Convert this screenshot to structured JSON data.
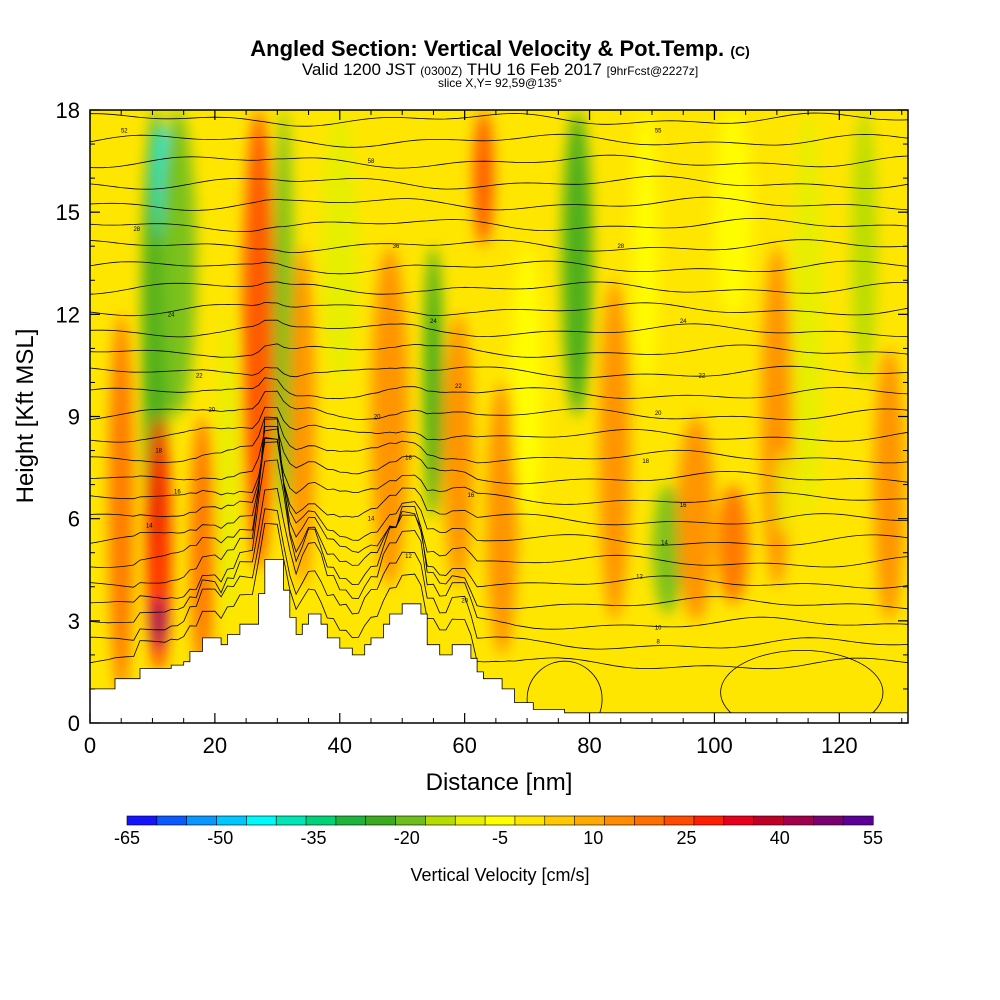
{
  "header": {
    "title_main": "Angled Section: Vertical Velocity & Pot.Temp.",
    "title_unit": "(C)",
    "valid_prefix": "Valid 1200 JST",
    "valid_utc": "(0300Z)",
    "valid_date": "THU 16 Feb 2017",
    "forecast": "[9hrFcst@2227z]",
    "slice": "slice X,Y= 92,59@135°"
  },
  "chart_data": {
    "type": "heatmap",
    "xlabel": "Distance [nm]",
    "ylabel": "Height [Kft MSL]",
    "xlim": [
      0,
      131
    ],
    "ylim": [
      0,
      18
    ],
    "x_ticks": [
      "0",
      "20",
      "40",
      "60",
      "80",
      "100",
      "120"
    ],
    "y_ticks": [
      "0",
      "3",
      "6",
      "9",
      "12",
      "15",
      "18"
    ],
    "x_tick_values": [
      0,
      20,
      40,
      60,
      80,
      100,
      120
    ],
    "y_tick_values": [
      0,
      3,
      6,
      9,
      12,
      15,
      18
    ],
    "colorbar": {
      "title": "Vertical Velocity [cm/s]",
      "labels": [
        "-65",
        "-50",
        "-35",
        "-20",
        "-5",
        "10",
        "25",
        "40",
        "55"
      ],
      "label_values": [
        -65,
        -50,
        -35,
        -20,
        -5,
        10,
        25,
        40,
        55
      ],
      "colors": [
        "#1414ff",
        "#0a5aff",
        "#0a96ff",
        "#00c8ff",
        "#00fafa",
        "#00e6b4",
        "#00d278",
        "#1eb43c",
        "#3caa1e",
        "#6ebe1e",
        "#b4dc00",
        "#e6f000",
        "#ffff00",
        "#ffe600",
        "#ffc800",
        "#ffaa00",
        "#ff8c00",
        "#ff6e00",
        "#ff4b00",
        "#ff1e00",
        "#e6001e",
        "#be0028",
        "#a0004b",
        "#7a0070",
        "#5a0096"
      ]
    },
    "terrain_profile": [
      [
        0,
        1.0
      ],
      [
        4,
        1.0
      ],
      [
        4,
        1.3
      ],
      [
        8,
        1.3
      ],
      [
        8,
        1.6
      ],
      [
        13,
        1.6
      ],
      [
        13,
        1.7
      ],
      [
        15,
        1.7
      ],
      [
        15,
        1.8
      ],
      [
        16,
        1.8
      ],
      [
        16,
        2.1
      ],
      [
        18,
        2.1
      ],
      [
        18,
        2.5
      ],
      [
        21,
        2.5
      ],
      [
        21,
        2.3
      ],
      [
        22,
        2.3
      ],
      [
        22,
        2.6
      ],
      [
        24,
        2.6
      ],
      [
        24,
        2.9
      ],
      [
        27,
        2.9
      ],
      [
        27,
        3.8
      ],
      [
        28,
        3.8
      ],
      [
        28,
        4.8
      ],
      [
        31,
        4.8
      ],
      [
        31,
        3.9
      ],
      [
        32,
        3.9
      ],
      [
        32,
        3.1
      ],
      [
        33,
        3.1
      ],
      [
        33,
        2.6
      ],
      [
        34,
        2.6
      ],
      [
        34,
        2.9
      ],
      [
        35,
        2.9
      ],
      [
        35,
        3.2
      ],
      [
        37,
        3.2
      ],
      [
        37,
        2.9
      ],
      [
        38,
        2.9
      ],
      [
        38,
        2.5
      ],
      [
        40,
        2.5
      ],
      [
        40,
        2.2
      ],
      [
        42,
        2.2
      ],
      [
        42,
        2.0
      ],
      [
        44,
        2.0
      ],
      [
        44,
        2.3
      ],
      [
        45,
        2.3
      ],
      [
        45,
        2.5
      ],
      [
        47,
        2.5
      ],
      [
        47,
        2.9
      ],
      [
        48,
        2.9
      ],
      [
        48,
        3.2
      ],
      [
        50,
        3.2
      ],
      [
        50,
        3.5
      ],
      [
        53,
        3.5
      ],
      [
        53,
        3.2
      ],
      [
        54,
        3.2
      ],
      [
        54,
        2.3
      ],
      [
        56,
        2.3
      ],
      [
        56,
        2.0
      ],
      [
        58,
        2.0
      ],
      [
        58,
        2.3
      ],
      [
        61,
        2.3
      ],
      [
        61,
        1.9
      ],
      [
        62,
        1.9
      ],
      [
        62,
        1.5
      ],
      [
        63,
        1.5
      ],
      [
        63,
        1.3
      ],
      [
        66,
        1.3
      ],
      [
        66,
        1.0
      ],
      [
        68,
        1.0
      ],
      [
        68,
        0.6
      ],
      [
        71,
        0.6
      ],
      [
        71,
        0.4
      ],
      [
        76,
        0.4
      ],
      [
        76,
        0.3
      ],
      [
        131,
        0.3
      ]
    ],
    "velocity_bands": [
      {
        "x": 5,
        "ztop": 12,
        "zbot": 0.8,
        "value": 18,
        "width": 2.0
      },
      {
        "x": 10.5,
        "ztop": 18,
        "zbot": 5,
        "value": -22,
        "width": 2.2
      },
      {
        "x": 11,
        "ztop": 9,
        "zbot": 1.5,
        "value": 30,
        "width": 2.0
      },
      {
        "x": 11,
        "ztop": 3.7,
        "zbot": 2.2,
        "value": 50,
        "width": 1.0
      },
      {
        "x": 11.5,
        "ztop": 17.6,
        "zbot": 14,
        "value": -45,
        "width": 1.2
      },
      {
        "x": 14,
        "ztop": 18,
        "zbot": 9,
        "value": -18,
        "width": 3.0
      },
      {
        "x": 18,
        "ztop": 9,
        "zbot": 1.5,
        "value": 20,
        "width": 2.0
      },
      {
        "x": 22,
        "ztop": 12,
        "zbot": 3,
        "value": -8,
        "width": 1.6
      },
      {
        "x": 27,
        "ztop": 18,
        "zbot": 4.5,
        "value": 22,
        "width": 2.6
      },
      {
        "x": 31,
        "ztop": 18,
        "zbot": 6,
        "value": -20,
        "width": 1.6
      },
      {
        "x": 34,
        "ztop": 14,
        "zbot": 4,
        "value": 12,
        "width": 2.0
      },
      {
        "x": 40,
        "ztop": 18,
        "zbot": 10,
        "value": -8,
        "width": 3.0
      },
      {
        "x": 48,
        "ztop": 14,
        "zbot": 4,
        "value": 14,
        "width": 3.0
      },
      {
        "x": 55,
        "ztop": 14,
        "zbot": 6,
        "value": -22,
        "width": 1.6
      },
      {
        "x": 59,
        "ztop": 12,
        "zbot": 4,
        "value": 12,
        "width": 2.4
      },
      {
        "x": 63,
        "ztop": 18,
        "zbot": 14,
        "value": 22,
        "width": 1.6
      },
      {
        "x": 66,
        "ztop": 10,
        "zbot": 2,
        "value": 14,
        "width": 2.5
      },
      {
        "x": 70,
        "ztop": 14,
        "zbot": 6,
        "value": -6,
        "width": 2.5
      },
      {
        "x": 78,
        "ztop": 18,
        "zbot": 9,
        "value": -25,
        "width": 2.4
      },
      {
        "x": 84,
        "ztop": 13,
        "zbot": 3,
        "value": 12,
        "width": 2.5
      },
      {
        "x": 89,
        "ztop": 18,
        "zbot": 10,
        "value": -6,
        "width": 2.0
      },
      {
        "x": 92.5,
        "ztop": 7,
        "zbot": 3.2,
        "value": -18,
        "width": 2.4
      },
      {
        "x": 97,
        "ztop": 9,
        "zbot": 3,
        "value": 16,
        "width": 3.0
      },
      {
        "x": 103,
        "ztop": 18,
        "zbot": 12,
        "value": -6,
        "width": 3.0
      },
      {
        "x": 103,
        "ztop": 7,
        "zbot": 3.5,
        "value": 18,
        "width": 2.5
      },
      {
        "x": 110,
        "ztop": 14,
        "zbot": 4,
        "value": 14,
        "width": 2.5
      },
      {
        "x": 111,
        "ztop": 8,
        "zbot": 5.5,
        "value": -12,
        "width": 1.2
      },
      {
        "x": 115,
        "ztop": 18,
        "zbot": 6,
        "value": -8,
        "width": 2.5
      },
      {
        "x": 124,
        "ztop": 18,
        "zbot": 10,
        "value": -16,
        "width": 2.0
      },
      {
        "x": 128,
        "ztop": 11,
        "zbot": 3,
        "value": 12,
        "width": 2.5
      }
    ],
    "contour_labels": [
      {
        "x": 5.5,
        "z": 17.4,
        "text": "52"
      },
      {
        "x": 45,
        "z": 16.5,
        "text": "58"
      },
      {
        "x": 91,
        "z": 17.4,
        "text": "55"
      },
      {
        "x": 7.5,
        "z": 14.5,
        "text": "28"
      },
      {
        "x": 49,
        "z": 14.0,
        "text": "36"
      },
      {
        "x": 85,
        "z": 14.0,
        "text": "28"
      },
      {
        "x": 13,
        "z": 12.0,
        "text": "24"
      },
      {
        "x": 55,
        "z": 11.8,
        "text": "24"
      },
      {
        "x": 95,
        "z": 11.8,
        "text": "24"
      },
      {
        "x": 17.5,
        "z": 10.2,
        "text": "22"
      },
      {
        "x": 59,
        "z": 9.9,
        "text": "22"
      },
      {
        "x": 98,
        "z": 10.2,
        "text": "22"
      },
      {
        "x": 19.5,
        "z": 9.2,
        "text": "20"
      },
      {
        "x": 46,
        "z": 9.0,
        "text": "20"
      },
      {
        "x": 91,
        "z": 9.1,
        "text": "20"
      },
      {
        "x": 11,
        "z": 8.0,
        "text": "18"
      },
      {
        "x": 51,
        "z": 7.8,
        "text": "18"
      },
      {
        "x": 89,
        "z": 7.7,
        "text": "18"
      },
      {
        "x": 14,
        "z": 6.8,
        "text": "16"
      },
      {
        "x": 61,
        "z": 6.7,
        "text": "16"
      },
      {
        "x": 95,
        "z": 6.4,
        "text": "16"
      },
      {
        "x": 9.5,
        "z": 5.8,
        "text": "14"
      },
      {
        "x": 45,
        "z": 6.0,
        "text": "14"
      },
      {
        "x": 92,
        "z": 5.3,
        "text": "14"
      },
      {
        "x": 51,
        "z": 4.9,
        "text": "12"
      },
      {
        "x": 88,
        "z": 4.3,
        "text": "12"
      },
      {
        "x": 60,
        "z": 3.6,
        "text": "20"
      },
      {
        "x": 91,
        "z": 2.8,
        "text": "10"
      },
      {
        "x": 91,
        "z": 2.4,
        "text": "8"
      }
    ]
  }
}
